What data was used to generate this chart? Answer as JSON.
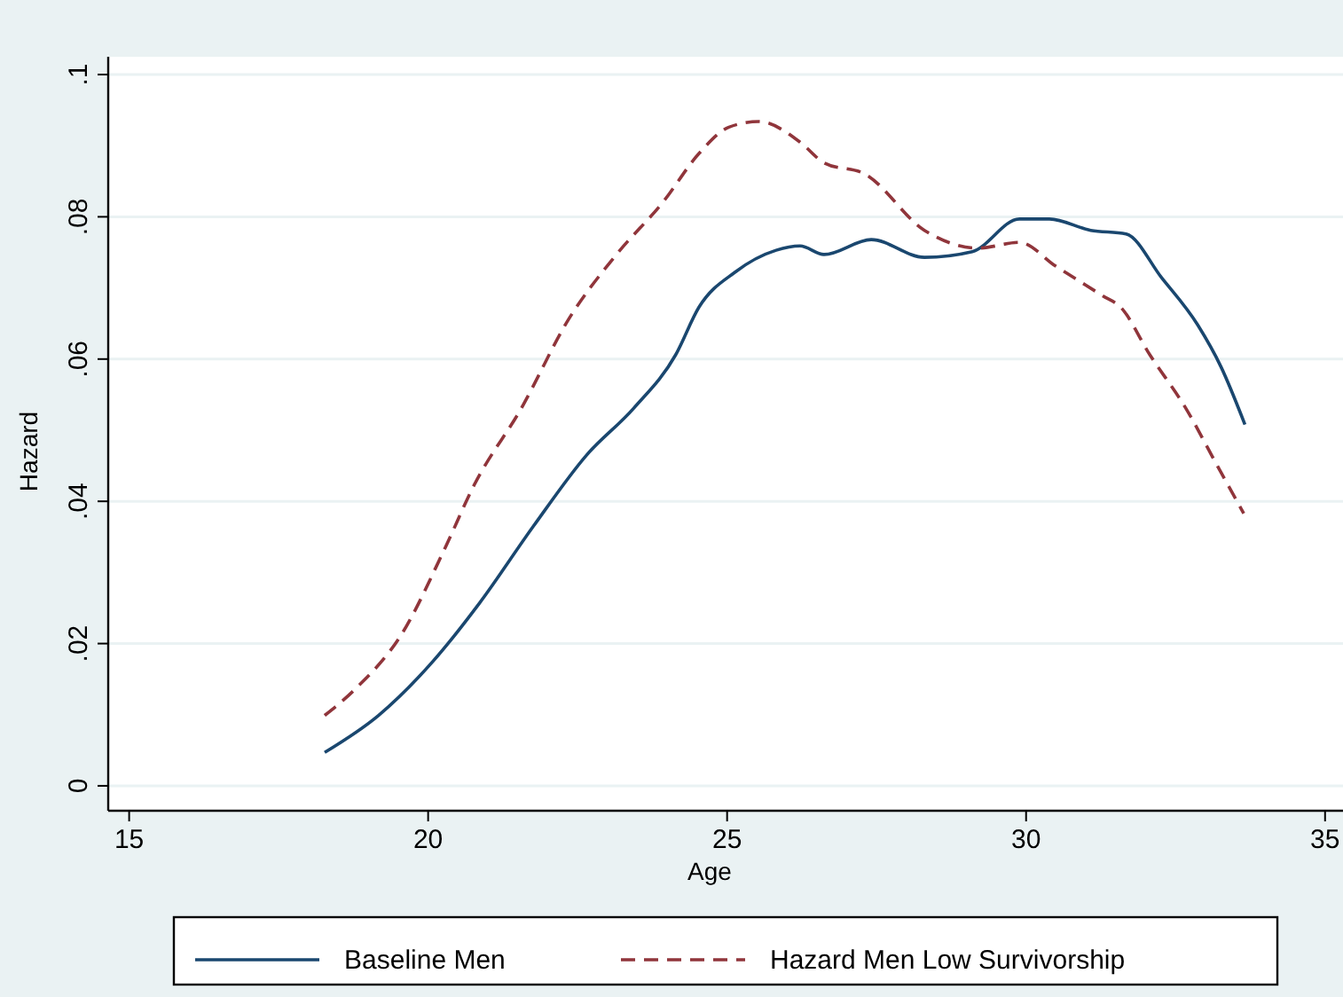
{
  "chart_data": {
    "type": "line",
    "xlabel": "Age",
    "ylabel": "Hazard",
    "xlim": [
      14.65,
      35.3
    ],
    "ylim": [
      -0.0035,
      0.1025
    ],
    "xticks": [
      15,
      20,
      25,
      30,
      35
    ],
    "yticks": [
      0,
      {
        "value": 0.02,
        "label": ".02"
      },
      {
        "value": 0.04,
        "label": ".04"
      },
      {
        "value": 0.06,
        "label": ".06"
      },
      {
        "value": 0.08,
        "label": ".08"
      },
      {
        "value": 0.1,
        "label": ".1"
      }
    ],
    "grid": "y",
    "legend": "bottom",
    "series": [
      {
        "name": "Baseline Men",
        "color": "#1a476f",
        "line_style": "solid",
        "x": [
          18.27,
          19.17,
          20.07,
          20.86,
          21.76,
          22.65,
          23.44,
          24.14,
          24.53,
          25.13,
          25.82,
          26.22,
          26.62,
          27.41,
          28.3,
          29.1,
          29.89,
          30.39,
          31.08,
          31.67,
          32.27,
          32.87,
          33.26,
          33.66
        ],
        "values": [
          0.0047,
          0.0099,
          0.0174,
          0.0257,
          0.0365,
          0.0465,
          0.0531,
          0.0606,
          0.0673,
          0.0722,
          0.0753,
          0.0759,
          0.0747,
          0.0768,
          0.0743,
          0.0751,
          0.0797,
          0.0797,
          0.0781,
          0.0776,
          0.0714,
          0.0648,
          0.0589,
          0.0508
        ]
      },
      {
        "name": "Hazard Men Low Survivorship",
        "color": "#90353b",
        "line_style": "dashed",
        "x": [
          18.27,
          18.78,
          19.57,
          20.27,
          20.77,
          21.56,
          22.35,
          23.15,
          23.94,
          24.53,
          25.03,
          25.53,
          26.22,
          26.62,
          27.31,
          28.3,
          29.2,
          29.89,
          30.49,
          31.28,
          31.58,
          32.07,
          32.67,
          33.16,
          33.64
        ],
        "values": [
          0.0099,
          0.0136,
          0.0215,
          0.0332,
          0.0423,
          0.0531,
          0.0656,
          0.0747,
          0.0822,
          0.0889,
          0.0926,
          0.0934,
          0.0905,
          0.0876,
          0.086,
          0.0781,
          0.0756,
          0.0764,
          0.0731,
          0.0689,
          0.0673,
          0.0606,
          0.0531,
          0.0456,
          0.0383
        ]
      }
    ]
  }
}
